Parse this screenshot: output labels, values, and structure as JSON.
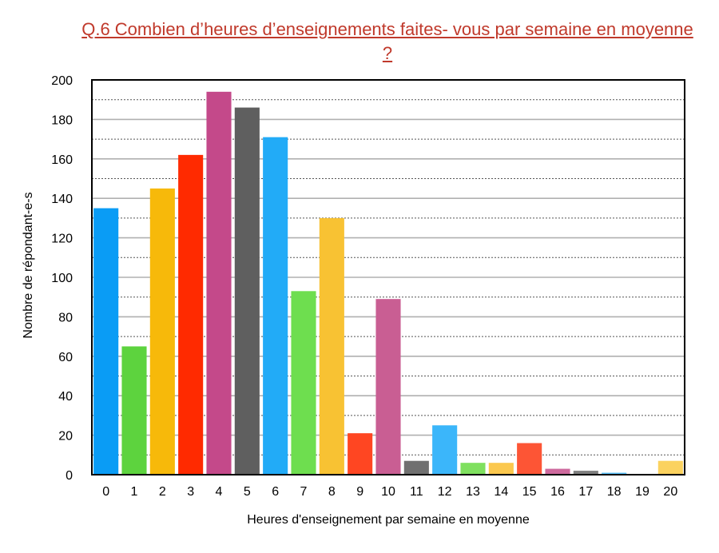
{
  "chart_data": {
    "type": "bar",
    "title": "Q.6 Combien d’heures d’enseignements faites- vous par semaine en moyenne ?",
    "xlabel": "Heures d'enseignement par semaine en moyenne",
    "ylabel": "Nombre de répondant-e-s",
    "ylim": [
      0,
      200
    ],
    "yticks": [
      0,
      20,
      40,
      60,
      80,
      100,
      120,
      140,
      160,
      180,
      200
    ],
    "grid": "horizontal (solid major every 20, dotted minor every 10)",
    "categories": [
      "0",
      "1",
      "2",
      "3",
      "4",
      "5",
      "6",
      "7",
      "8",
      "9",
      "10",
      "11",
      "12",
      "13",
      "14",
      "15",
      "16",
      "17",
      "18",
      "19",
      "20"
    ],
    "values": [
      135,
      65,
      145,
      162,
      194,
      186,
      171,
      93,
      130,
      21,
      89,
      7,
      25,
      6,
      6,
      16,
      3,
      2,
      1,
      0,
      7
    ],
    "colors": [
      "#0a9cf5",
      "#5dd33e",
      "#f7b90a",
      "#ff2a00",
      "#c4498a",
      "#5f5f5f",
      "#22abf7",
      "#6ede4f",
      "#f8c233",
      "#ff4622",
      "#c95e93",
      "#707070",
      "#3bb6fa",
      "#7fe05f",
      "#fbc84e",
      "#fd5535",
      "#ce6a9e",
      "#808080",
      "#5cc1fa",
      "#8ee56d",
      "#fbd25f"
    ]
  }
}
